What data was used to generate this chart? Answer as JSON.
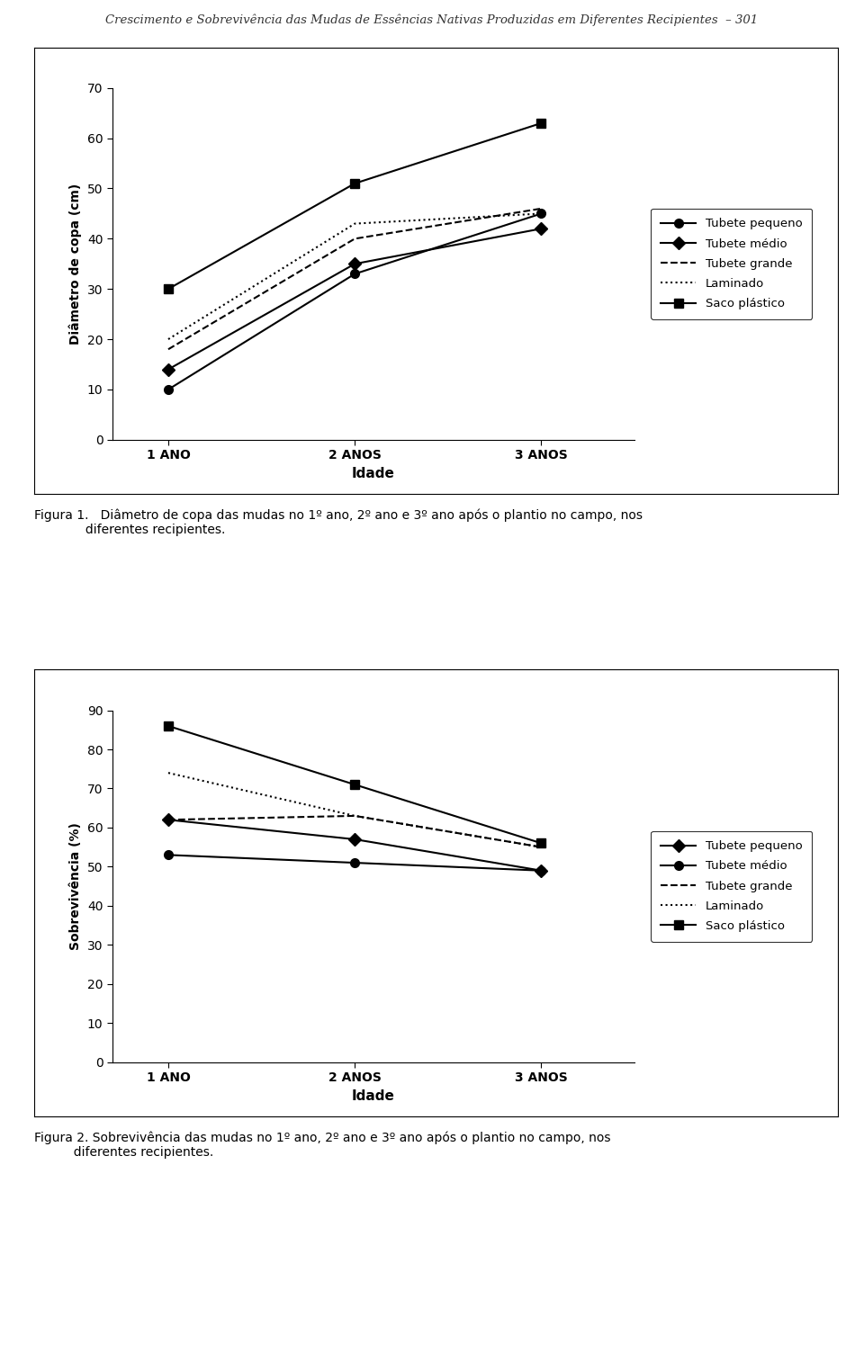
{
  "header_text": "Crescimento e Sobrevivência das Mudas de Essências Nativas Produzidas em Diferentes Recipientes  – 301",
  "chart1": {
    "x_labels": [
      "1 ANO",
      "2 ANOS",
      "3 ANOS"
    ],
    "x_positions": [
      1,
      2,
      3
    ],
    "ylabel": "Diâmetro de copa (cm)",
    "xlabel": "Idade",
    "ylim": [
      0,
      70
    ],
    "yticks": [
      0,
      10,
      20,
      30,
      40,
      50,
      60,
      70
    ],
    "series": {
      "tubete_pequeno": {
        "values": [
          10,
          33,
          45
        ],
        "marker": "o",
        "linestyle": "-",
        "label": "Tubete pequeno"
      },
      "tubete_medio": {
        "values": [
          14,
          35,
          42
        ],
        "marker": "D",
        "linestyle": "-",
        "label": "Tubete médio"
      },
      "tubete_grande": {
        "values": [
          18,
          40,
          46
        ],
        "marker": null,
        "linestyle": "--",
        "label": "Tubete grande"
      },
      "laminado": {
        "values": [
          20,
          43,
          45
        ],
        "marker": null,
        "linestyle": ":",
        "label": "Laminado"
      },
      "saco_plastico": {
        "values": [
          30,
          51,
          63
        ],
        "marker": "s",
        "linestyle": "-",
        "label": "Saco plástico"
      }
    },
    "caption": "Figura 1.   Diâmetro de copa das mudas no 1º ano, 2º ano e 3º ano após o plantio no campo, nos\n             diferentes recipientes."
  },
  "chart2": {
    "x_labels": [
      "1 ANO",
      "2 ANOS",
      "3 ANOS"
    ],
    "x_positions": [
      1,
      2,
      3
    ],
    "ylabel": "Sobrevivência (%)",
    "xlabel": "Idade",
    "ylim": [
      0,
      90
    ],
    "yticks": [
      0,
      10,
      20,
      30,
      40,
      50,
      60,
      70,
      80,
      90
    ],
    "series": {
      "tubete_pequeno": {
        "values": [
          62,
          57,
          49
        ],
        "marker": "D",
        "linestyle": "-",
        "label": "Tubete pequeno"
      },
      "tubete_medio": {
        "values": [
          53,
          51,
          49
        ],
        "marker": "o",
        "linestyle": "-",
        "label": "Tubete médio"
      },
      "tubete_grande": {
        "values": [
          62,
          63,
          55
        ],
        "marker": null,
        "linestyle": "--",
        "label": "Tubete grande"
      },
      "laminado": {
        "values": [
          74,
          63,
          55
        ],
        "marker": null,
        "linestyle": ":",
        "label": "Laminado"
      },
      "saco_plastico": {
        "values": [
          86,
          71,
          56
        ],
        "marker": "s",
        "linestyle": "-",
        "label": "Saco plástico"
      }
    },
    "caption": "Figura 2. Sobrevivência das mudas no 1º ano, 2º ano e 3º ano após o plantio no campo, nos\n          diferentes recipientes."
  },
  "color": "#000000",
  "bg_color": "#ffffff",
  "linewidth": 1.5,
  "markersize": 7
}
